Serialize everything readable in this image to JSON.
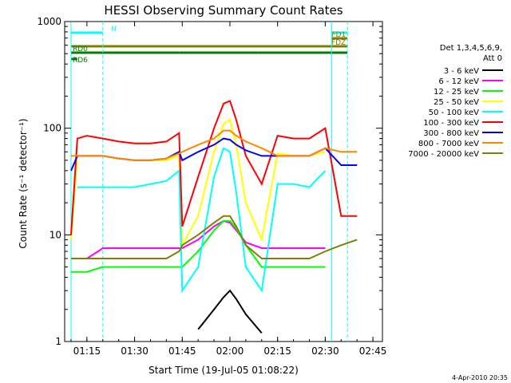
{
  "chart_data": {
    "type": "line",
    "title": "HESSI Observing Summary Count Rates",
    "xlabel": "Start Time (19-Jul-05 01:08:22)",
    "ylabel": "Count Rate (s⁻¹ detector⁻¹)",
    "yscale": "log",
    "ylim": [
      1,
      1000
    ],
    "xlim": [
      "01:08",
      "02:48"
    ],
    "x_ticks": [
      "01:15",
      "01:30",
      "01:45",
      "02:00",
      "02:15",
      "02:30",
      "02:45"
    ],
    "y_ticks": [
      "1",
      "10",
      "100",
      "1000"
    ],
    "grid": false,
    "legend_position": "right",
    "legend_header": [
      "Det 1,3,4,5,6,9,",
      "Att 0"
    ],
    "footer": "4-Apr-2010 20:35",
    "x": [
      70,
      72,
      75,
      80,
      85,
      90,
      95,
      100,
      104,
      105,
      110,
      115,
      118,
      120,
      122,
      125,
      130,
      135,
      140,
      145,
      150,
      155,
      160
    ],
    "series": [
      {
        "name": "3 - 6 keV",
        "color": "#000000",
        "values": [
          null,
          null,
          null,
          null,
          null,
          null,
          null,
          null,
          null,
          null,
          1.3,
          2,
          2.6,
          3,
          2.5,
          1.8,
          1.2,
          null,
          null,
          null,
          null,
          null,
          null
        ]
      },
      {
        "name": "6 - 12 keV",
        "color": "#ff00ff",
        "values": [
          6,
          6,
          6,
          7.5,
          7.5,
          7.5,
          7.5,
          7.5,
          7.5,
          7.5,
          9,
          12,
          13.5,
          13,
          11,
          8.5,
          7.5,
          7.5,
          7.5,
          7.5,
          7.5,
          null,
          null
        ]
      },
      {
        "name": "12 - 25 keV",
        "color": "#00ff00",
        "values": [
          4.5,
          4.5,
          4.5,
          5,
          5,
          5,
          5,
          5,
          5,
          5,
          7,
          11,
          13.5,
          13.5,
          11.5,
          8,
          5,
          5,
          5,
          5,
          5,
          null,
          null
        ]
      },
      {
        "name": "25 - 50 keV",
        "color": "#ffff00",
        "values": [
          9,
          55,
          55,
          55,
          52,
          50,
          50,
          50,
          55,
          8,
          15,
          60,
          110,
          120,
          70,
          20,
          9,
          58,
          55,
          55,
          60,
          null,
          null
        ]
      },
      {
        "name": "50 - 100 keV",
        "color": "#00ffff",
        "values": [
          null,
          28,
          28,
          28,
          28,
          28,
          30,
          32,
          40,
          3,
          5,
          35,
          65,
          60,
          25,
          5,
          3,
          30,
          30,
          28,
          40,
          null,
          null
        ]
      },
      {
        "name": "100 - 300 keV",
        "color": "#ff0000",
        "values": [
          10,
          80,
          85,
          80,
          75,
          72,
          72,
          75,
          90,
          12,
          35,
          100,
          170,
          180,
          120,
          55,
          30,
          85,
          80,
          80,
          100,
          15,
          15
        ]
      },
      {
        "name": "300 - 800 keV",
        "color": "#0000ff",
        "values": [
          40,
          55,
          55,
          55,
          52,
          50,
          50,
          52,
          60,
          50,
          60,
          70,
          80,
          78,
          70,
          62,
          55,
          55,
          55,
          55,
          65,
          45,
          45
        ]
      },
      {
        "name": "800 - 7000 keV",
        "color": "#ff8800",
        "values": [
          55,
          55,
          55,
          55,
          52,
          50,
          50,
          52,
          58,
          60,
          70,
          80,
          95,
          95,
          85,
          75,
          65,
          55,
          55,
          55,
          65,
          60,
          60
        ]
      },
      {
        "name": "7000 - 20000 keV",
        "color": "#808000",
        "values": [
          6,
          6,
          6,
          6,
          6,
          6,
          6,
          6,
          7,
          8,
          10,
          13,
          15,
          15,
          12,
          8,
          6,
          6,
          6,
          6,
          7,
          8,
          9
        ]
      }
    ],
    "flag_bars": [
      {
        "label": "N",
        "color": "#00ffff",
        "segments": [
          [
            70,
            80
          ],
          [
            152,
            157
          ]
        ]
      },
      {
        "label": "FD1",
        "color": "#808000",
        "segments": [
          [
            152,
            157
          ]
        ]
      },
      {
        "label": "FDZ",
        "color": "#808000",
        "segments": [
          [
            70,
            157
          ]
        ]
      },
      {
        "label": "RD0",
        "color": "#008000",
        "segments": [
          [
            70,
            104
          ],
          [
            104,
            129
          ],
          [
            129,
            157
          ]
        ]
      },
      {
        "label": "RD6",
        "color": "#008000",
        "segments": [
          [
            70,
            72
          ]
        ]
      }
    ]
  }
}
